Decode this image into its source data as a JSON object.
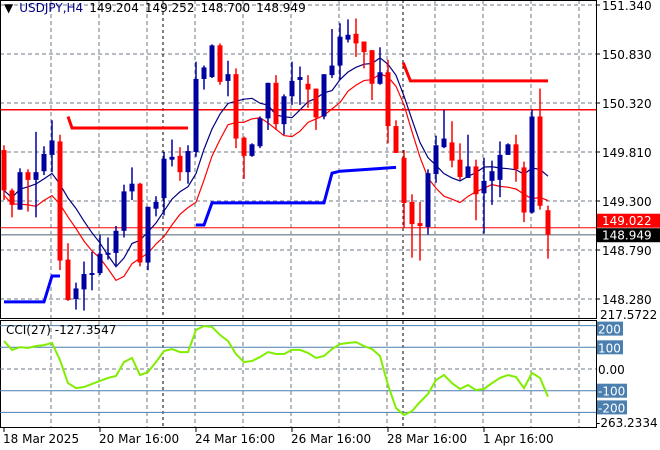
{
  "header": {
    "symbol": "USDJPY,H4",
    "open": "149.204",
    "high": "149.252",
    "low": "148.700",
    "close": "148.949"
  },
  "price_axis": {
    "ticks": [
      "151.340",
      "150.830",
      "150.320",
      "149.810",
      "149.300",
      "148.790",
      "148.280"
    ],
    "bid_label": "148.949",
    "ask_label": "149.022"
  },
  "cci": {
    "label": "CCI(27)",
    "value": "-127.3547",
    "max_label": "217.5722",
    "min_label": "-263.2334",
    "levels": [
      "200",
      "100",
      "0.00",
      "-100",
      "-200"
    ],
    "values": [
      129,
      88,
      101,
      97,
      106,
      110,
      120,
      41,
      -65,
      -88,
      -83,
      -69,
      -55,
      -41,
      -32,
      32,
      51,
      -28,
      -14,
      32,
      83,
      92,
      78,
      78,
      180,
      198,
      194,
      157,
      129,
      69,
      32,
      37,
      55,
      78,
      69,
      69,
      88,
      88,
      74,
      51,
      60,
      92,
      115,
      120,
      124,
      106,
      92,
      60,
      -74,
      -180,
      -212,
      -194,
      -152,
      -115,
      -51,
      -28,
      -65,
      -92,
      -74,
      -97,
      -92,
      -65,
      -41,
      -28,
      -37,
      -88,
      -18,
      -41,
      -127.35
    ]
  },
  "time_axis": [
    "18 Mar 2025",
    "20 Mar 16:00",
    "24 Mar 16:00",
    "26 Mar 16:00",
    "28 Mar 16:00",
    "1 Apr 16:00"
  ],
  "colors": {
    "bull": "#0000a0",
    "bear": "#ff0000",
    "cci": "#80ee00",
    "level": "#4a7fb0",
    "support": "#0000ff",
    "ma1": "#000080",
    "ma2": "#ff0000"
  },
  "candles": [
    [
      149.83,
      149.88,
      149.31,
      149.41
    ],
    [
      149.41,
      149.43,
      149.13,
      149.26
    ],
    [
      149.21,
      149.64,
      149.21,
      149.6
    ],
    [
      149.6,
      149.63,
      149.19,
      149.52
    ],
    [
      149.52,
      150.02,
      149.13,
      149.6
    ],
    [
      149.61,
      149.87,
      149.57,
      149.79
    ],
    [
      149.78,
      150.14,
      149.6,
      149.93
    ],
    [
      149.92,
      149.99,
      148.58,
      148.68
    ],
    [
      148.69,
      148.86,
      148.26,
      148.27
    ],
    [
      148.28,
      148.45,
      148.17,
      148.39
    ],
    [
      148.38,
      148.67,
      148.16,
      148.54
    ],
    [
      148.53,
      148.77,
      148.37,
      148.55
    ],
    [
      148.55,
      148.95,
      148.53,
      148.75
    ],
    [
      148.74,
      148.92,
      148.69,
      148.76
    ],
    [
      148.76,
      149.04,
      148.63,
      148.99
    ],
    [
      148.99,
      149.47,
      148.92,
      149.4
    ],
    [
      149.4,
      149.65,
      149.31,
      149.48
    ],
    [
      149.48,
      149.49,
      148.62,
      148.66
    ],
    [
      148.66,
      149.24,
      148.58,
      149.24
    ],
    [
      149.22,
      149.35,
      149.14,
      149.29
    ],
    [
      149.33,
      149.81,
      149.15,
      149.74
    ],
    [
      149.73,
      149.94,
      149.66,
      149.76
    ],
    [
      149.77,
      149.86,
      149.51,
      149.6
    ],
    [
      149.6,
      149.88,
      149.48,
      149.82
    ],
    [
      149.81,
      150.75,
      149.76,
      150.57
    ],
    [
      150.57,
      150.71,
      150.46,
      150.69
    ],
    [
      150.59,
      150.93,
      150.58,
      150.92
    ],
    [
      150.92,
      150.94,
      150.51,
      150.54
    ],
    [
      150.55,
      150.76,
      150.39,
      150.62
    ],
    [
      150.62,
      150.68,
      149.85,
      149.95
    ],
    [
      149.96,
      149.97,
      149.53,
      149.77
    ],
    [
      149.77,
      149.9,
      149.76,
      149.89
    ],
    [
      149.87,
      150.18,
      149.85,
      150.16
    ],
    [
      150.16,
      150.53,
      150.04,
      150.53
    ],
    [
      150.53,
      150.61,
      150.04,
      150.1
    ],
    [
      150.1,
      150.41,
      149.99,
      150.39
    ],
    [
      150.39,
      150.75,
      150.3,
      150.55
    ],
    [
      150.56,
      150.7,
      150.3,
      150.59
    ],
    [
      150.52,
      150.61,
      150.27,
      150.46
    ],
    [
      150.47,
      150.47,
      150.04,
      150.17
    ],
    [
      150.18,
      150.62,
      150.15,
      150.62
    ],
    [
      150.61,
      151.09,
      150.58,
      150.71
    ],
    [
      150.71,
      151.15,
      150.56,
      151.01
    ],
    [
      150.98,
      151.19,
      150.95,
      151.03
    ],
    [
      151.04,
      151.2,
      150.8,
      150.94
    ],
    [
      150.96,
      150.96,
      150.68,
      150.85
    ],
    [
      150.87,
      150.87,
      150.35,
      150.52
    ],
    [
      150.52,
      150.9,
      150.51,
      150.64
    ],
    [
      150.64,
      150.77,
      149.9,
      150.08
    ],
    [
      150.08,
      150.14,
      149.8,
      149.8
    ],
    [
      149.75,
      149.83,
      149.02,
      149.28
    ],
    [
      149.29,
      149.37,
      148.71,
      149.06
    ],
    [
      149.07,
      149.29,
      148.68,
      149.04
    ],
    [
      149.03,
      149.63,
      148.95,
      149.59
    ],
    [
      149.58,
      149.98,
      149.49,
      149.88
    ],
    [
      149.86,
      150.25,
      149.85,
      149.95
    ],
    [
      149.91,
      150.13,
      149.65,
      149.72
    ],
    [
      149.73,
      149.9,
      149.52,
      149.55
    ],
    [
      149.54,
      149.99,
      149.54,
      149.66
    ],
    [
      149.66,
      149.73,
      149.1,
      149.37
    ],
    [
      149.38,
      149.75,
      148.96,
      149.51
    ],
    [
      149.51,
      149.72,
      149.26,
      149.61
    ],
    [
      149.52,
      149.92,
      149.34,
      149.78
    ],
    [
      149.78,
      149.9,
      149.78,
      149.89
    ],
    [
      149.89,
      149.99,
      149.5,
      149.63
    ],
    [
      149.65,
      149.71,
      149.08,
      149.18
    ],
    [
      149.18,
      150.25,
      149.17,
      150.18
    ],
    [
      150.18,
      150.47,
      149.21,
      149.25
    ],
    [
      149.204,
      149.252,
      148.7,
      148.949
    ]
  ],
  "resistance_level": 150.25,
  "resistance_steps": [
    [
      [
        8,
        150.18
      ],
      [
        8.5,
        150.06
      ],
      [
        23,
        150.06
      ]
    ],
    [
      [
        49.9,
        150.74
      ],
      [
        50.8,
        150.55
      ],
      [
        68,
        150.55
      ]
    ]
  ],
  "support_steps": [
    [
      [
        0,
        148.25
      ],
      [
        5,
        148.25
      ],
      [
        6,
        148.52
      ],
      [
        7,
        148.52
      ]
    ],
    [
      [
        24,
        149.05
      ],
      [
        25,
        149.05
      ],
      [
        26,
        149.28
      ],
      [
        40,
        149.28
      ],
      [
        41,
        149.59
      ],
      [
        42,
        149.61
      ],
      [
        49,
        149.65
      ]
    ]
  ]
}
